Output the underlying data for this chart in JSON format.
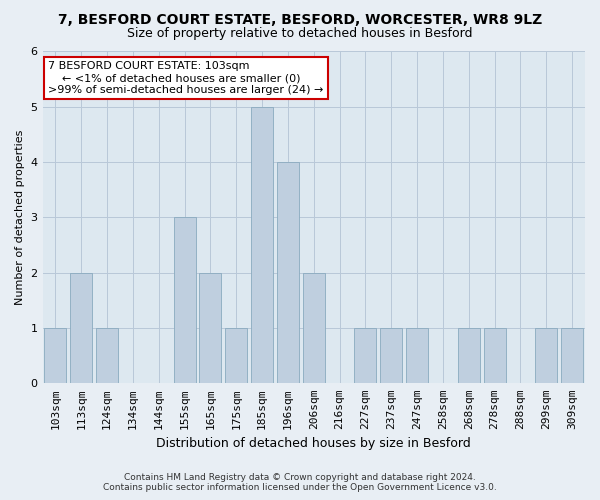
{
  "title": "7, BESFORD COURT ESTATE, BESFORD, WORCESTER, WR8 9LZ",
  "subtitle": "Size of property relative to detached houses in Besford",
  "xlabel": "Distribution of detached houses by size in Besford",
  "ylabel": "Number of detached properties",
  "bar_labels": [
    "103sqm",
    "113sqm",
    "124sqm",
    "134sqm",
    "144sqm",
    "155sqm",
    "165sqm",
    "175sqm",
    "185sqm",
    "196sqm",
    "206sqm",
    "216sqm",
    "227sqm",
    "237sqm",
    "247sqm",
    "258sqm",
    "268sqm",
    "278sqm",
    "288sqm",
    "299sqm",
    "309sqm"
  ],
  "bar_values": [
    1,
    2,
    1,
    0,
    0,
    3,
    2,
    1,
    5,
    4,
    2,
    0,
    1,
    1,
    1,
    0,
    1,
    1,
    0,
    1,
    1
  ],
  "bar_color": "#bfcfdf",
  "bar_edge_color": "#8aaabf",
  "ylim": [
    0,
    6
  ],
  "yticks": [
    0,
    1,
    2,
    3,
    4,
    5,
    6
  ],
  "annotation_title": "7 BESFORD COURT ESTATE: 103sqm",
  "annotation_line1": "← <1% of detached houses are smaller (0)",
  "annotation_line2": ">99% of semi-detached houses are larger (24) →",
  "annotation_box_facecolor": "#ffffff",
  "annotation_box_edgecolor": "#cc0000",
  "footer1": "Contains HM Land Registry data © Crown copyright and database right 2024.",
  "footer2": "Contains public sector information licensed under the Open Government Licence v3.0.",
  "bg_color": "#e8eef4",
  "plot_bg_color": "#dde8f0",
  "grid_color": "#b8c8d8",
  "title_fontsize": 10,
  "subtitle_fontsize": 9,
  "ylabel_fontsize": 8,
  "xlabel_fontsize": 9,
  "tick_fontsize": 8,
  "annot_fontsize": 8
}
